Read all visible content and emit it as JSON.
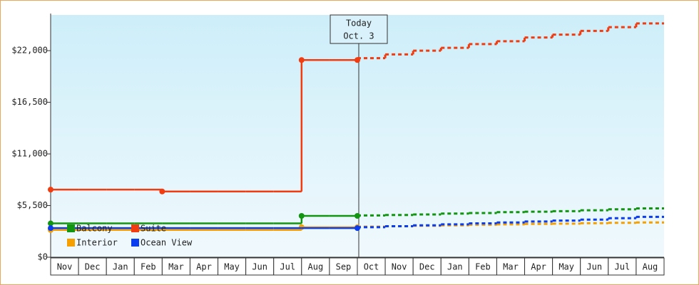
{
  "chart_data": {
    "type": "line",
    "categories": [
      "Nov",
      "Dec",
      "Jan",
      "Feb",
      "Mar",
      "Apr",
      "May",
      "Jun",
      "Jul",
      "Aug",
      "Sep",
      "Oct",
      "Nov",
      "Dec",
      "Jan",
      "Feb",
      "Mar",
      "Apr",
      "May",
      "Jun",
      "Jul",
      "Aug"
    ],
    "series": [
      {
        "name": "Balcony",
        "color": "#129612",
        "values": [
          3600,
          3600,
          3600,
          3600,
          3600,
          3600,
          3600,
          3600,
          3600,
          4400,
          4400,
          4450,
          4500,
          4550,
          4650,
          4700,
          4800,
          4850,
          4900,
          5000,
          5100,
          5200
        ]
      },
      {
        "name": "Suite",
        "color": "#f03c10",
        "values": [
          7200,
          7200,
          7200,
          7200,
          7000,
          7000,
          7000,
          7000,
          7000,
          21000,
          21000,
          21200,
          21600,
          22000,
          22300,
          22700,
          23000,
          23400,
          23700,
          24100,
          24500,
          24900
        ]
      },
      {
        "name": "Interior",
        "color": "#f5a000",
        "values": [
          2900,
          2900,
          2900,
          2900,
          2900,
          2900,
          2900,
          2900,
          2900,
          3200,
          3200,
          3250,
          3300,
          3350,
          3400,
          3450,
          3500,
          3550,
          3580,
          3620,
          3660,
          3700
        ]
      },
      {
        "name": "Ocean View",
        "color": "#0a3cf0",
        "values": [
          3100,
          3100,
          3100,
          3100,
          3100,
          3100,
          3100,
          3100,
          3100,
          3100,
          3100,
          3200,
          3300,
          3400,
          3500,
          3600,
          3700,
          3800,
          3900,
          4000,
          4150,
          4300
        ]
      }
    ],
    "today": {
      "label": "Today",
      "date": "Oct. 3",
      "month": "Oct"
    },
    "ylim": [
      0,
      25800
    ],
    "yticks": [
      {
        "value": 0,
        "label": "$0"
      },
      {
        "value": 5500,
        "label": "$5,500"
      },
      {
        "value": 11000,
        "label": "$11,000"
      },
      {
        "value": 16500,
        "label": "$16,500"
      },
      {
        "value": 22000,
        "label": "$22,000"
      }
    ],
    "grid": false
  }
}
